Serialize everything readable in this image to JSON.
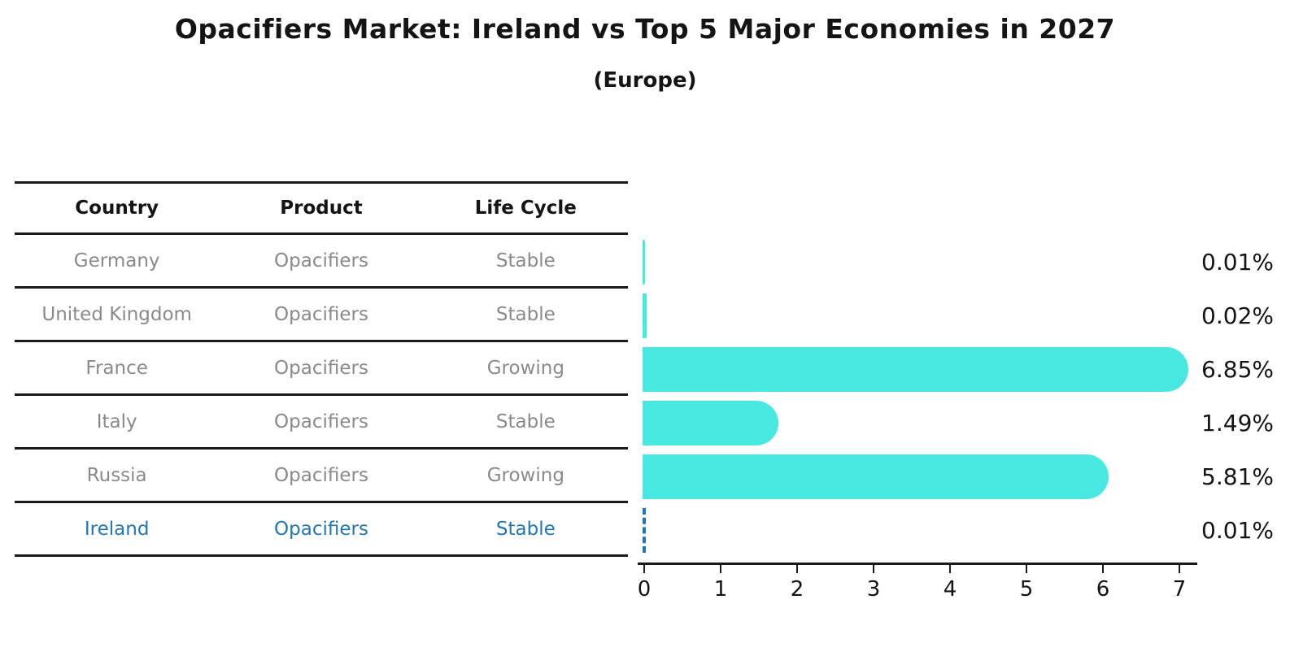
{
  "title": "Opacifiers Market: Ireland vs Top 5 Major Economies in 2027",
  "subtitle": "(Europe)",
  "table": {
    "headers": [
      "Country",
      "Product",
      "Life Cycle"
    ],
    "rows": [
      {
        "country": "Germany",
        "product": "Opacifiers",
        "life_cycle": "Stable",
        "highlight": false
      },
      {
        "country": "United Kingdom",
        "product": "Opacifiers",
        "life_cycle": "Stable",
        "highlight": false
      },
      {
        "country": "France",
        "product": "Opacifiers",
        "life_cycle": "Growing",
        "highlight": false
      },
      {
        "country": "Italy",
        "product": "Opacifiers",
        "life_cycle": "Stable",
        "highlight": false
      },
      {
        "country": "Russia",
        "product": "Opacifiers",
        "life_cycle": "Growing",
        "highlight": false
      },
      {
        "country": "Ireland",
        "product": "Opacifiers",
        "life_cycle": "Stable",
        "highlight": true
      }
    ]
  },
  "chart_data": {
    "type": "bar",
    "orientation": "horizontal",
    "categories": [
      "Germany",
      "United Kingdom",
      "France",
      "Italy",
      "Russia",
      "Ireland"
    ],
    "values": [
      0.01,
      0.02,
      6.85,
      1.49,
      5.81,
      0.01
    ],
    "value_labels": [
      "0.01%",
      "0.02%",
      "6.85%",
      "1.49%",
      "5.81%",
      "0.01%"
    ],
    "x_ticks": [
      "0",
      "1",
      "2",
      "3",
      "4",
      "5",
      "6",
      "7"
    ],
    "xlim": [
      0,
      7
    ],
    "grid": false,
    "legend": "none",
    "bar_color": "#47E8E0",
    "highlight_index": 5,
    "highlight_style": "dashed-outline",
    "highlight_color": "#1F77B4"
  },
  "colors": {
    "background": "#FFFFFF",
    "bar_cyan": "#47E8E0",
    "ireland_blue": "#1F77B4",
    "table_text_gray": "#8A8A8A",
    "heading_black": "#141414",
    "rule_black": "#1A1A1A"
  }
}
